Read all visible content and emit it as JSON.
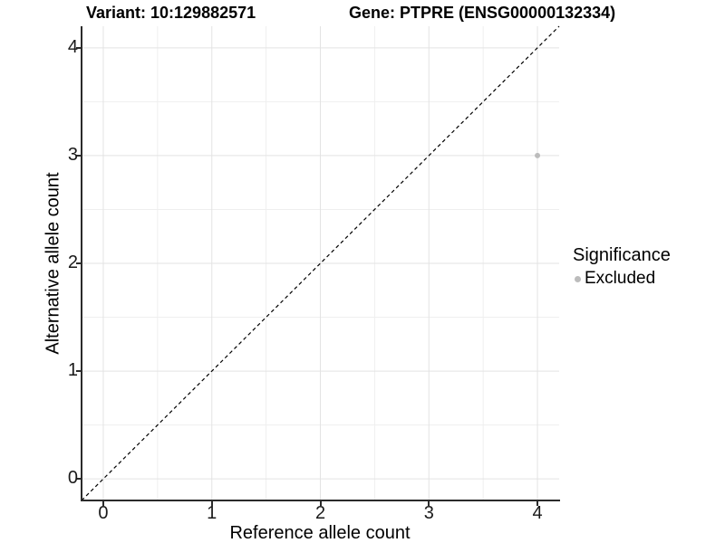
{
  "titles": {
    "variant": "Variant: 10:129882571",
    "gene": "Gene: PTPRE (ENSG00000132334)"
  },
  "chart_data": {
    "type": "scatter",
    "title_left": "Variant: 10:129882571",
    "title_right": "Gene: PTPRE (ENSG00000132334)",
    "xlabel": "Reference allele count",
    "ylabel": "Alternative allele count",
    "xlim": [
      -0.2,
      4.2
    ],
    "ylim": [
      -0.2,
      4.2
    ],
    "x_ticks": [
      0,
      1,
      2,
      3,
      4
    ],
    "y_ticks": [
      0,
      1,
      2,
      3,
      4
    ],
    "minor_ticks": [
      0.5,
      1.5,
      2.5,
      3.5
    ],
    "grid": {
      "major": true,
      "minor": true,
      "major_color": "#e3e3e3",
      "minor_color": "#efefef"
    },
    "reference_line": {
      "type": "identity",
      "from": [
        -0.2,
        -0.2
      ],
      "to": [
        4.2,
        4.2
      ],
      "style": "dashed",
      "color": "#000000"
    },
    "series": [
      {
        "name": "Excluded",
        "color": "#bcbcbc",
        "points": [
          {
            "x": 4,
            "y": 3
          }
        ]
      }
    ],
    "legend": {
      "title": "Significance",
      "position": "right",
      "entries": [
        {
          "label": "Excluded",
          "color": "#bcbcbc"
        }
      ]
    }
  }
}
